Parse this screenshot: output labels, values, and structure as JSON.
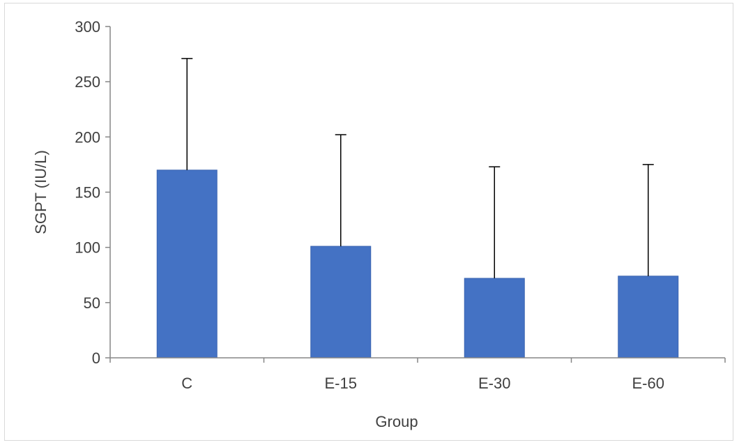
{
  "chart_data": {
    "type": "bar",
    "title": "",
    "xlabel": "Group",
    "ylabel": "SGPT (IU/L)",
    "categories": [
      "C",
      "E-15",
      "E-30",
      "E-60"
    ],
    "values": [
      170,
      101,
      72,
      74
    ],
    "error_upper": [
      101,
      101,
      101,
      101
    ],
    "ylim": [
      0,
      300
    ],
    "yticks": [
      0,
      50,
      100,
      150,
      200,
      250,
      300
    ],
    "yticks_labels": [
      "0",
      "50",
      "100",
      "150",
      "200",
      "250",
      "300"
    ],
    "grid": false,
    "legend": "none",
    "colors": {
      "bar": "#4472c4",
      "bar_edge": "#3a64b0",
      "axis": "#868686",
      "error_bar": "#000000",
      "text": "#404040"
    }
  }
}
